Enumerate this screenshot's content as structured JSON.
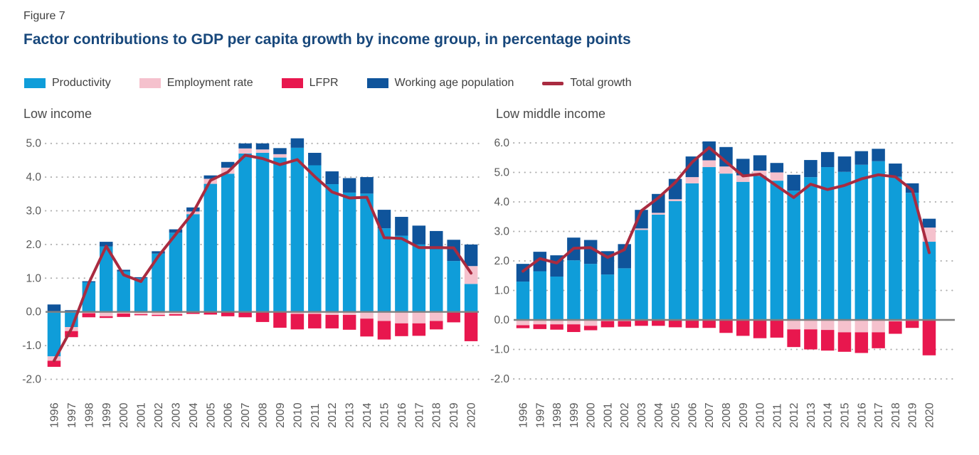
{
  "figure_label": "Figure 7",
  "title": "Factor contributions to GDP per capita growth by income group, in percentage points",
  "colors": {
    "productivity": "#0F9DD9",
    "employment_rate": "#F5C1CD",
    "lfpr": "#E8174E",
    "working_age_population": "#0F549B",
    "total_growth": "#A92B40",
    "title_text": "#17477B",
    "label_text": "#404040",
    "tick_text": "#595959",
    "zero_line": "#808080",
    "grid_dots": "#ADADAD"
  },
  "legend": [
    {
      "label": "Productivity",
      "type": "box",
      "color_key": "productivity"
    },
    {
      "label": "Employment rate",
      "type": "box",
      "color_key": "employment_rate"
    },
    {
      "label": "LFPR",
      "type": "box",
      "color_key": "lfpr"
    },
    {
      "label": "Working age population",
      "type": "box",
      "color_key": "working_age_population"
    },
    {
      "label": "Total growth",
      "type": "line",
      "color_key": "total_growth"
    }
  ],
  "chart_data": [
    {
      "type": "bar",
      "subtype": "stacked-bars-with-line",
      "title": "Low income",
      "ylabel": "",
      "xlabel": "",
      "ylim": [
        -2.0,
        5.0
      ],
      "yticks": [
        5.0,
        4.0,
        3.0,
        2.0,
        1.0,
        0.0,
        -1.0,
        -2.0
      ],
      "grid": true,
      "categories": [
        "1996",
        "1997",
        "1998",
        "1999",
        "2000",
        "2001",
        "2002",
        "2003",
        "2004",
        "2005",
        "2006",
        "2007",
        "2008",
        "2009",
        "2010",
        "2011",
        "2012",
        "2013",
        "2014",
        "2015",
        "2016",
        "2017",
        "2018",
        "2019",
        "2020"
      ],
      "series": [
        {
          "name": "Productivity",
          "key": "productivity",
          "values": [
            -1.32,
            -0.45,
            0.88,
            1.94,
            1.2,
            1.0,
            1.73,
            2.35,
            2.9,
            3.8,
            4.1,
            4.7,
            4.72,
            4.58,
            4.87,
            4.35,
            3.79,
            3.54,
            3.51,
            2.48,
            2.26,
            2.0,
            1.86,
            1.51,
            0.83
          ]
        },
        {
          "name": "Employment rate",
          "key": "employment_rate",
          "values": [
            -0.13,
            -0.12,
            -0.04,
            -0.13,
            -0.05,
            -0.07,
            -0.09,
            -0.07,
            0.08,
            0.15,
            0.18,
            0.15,
            0.1,
            0.1,
            -0.06,
            -0.06,
            -0.09,
            -0.09,
            -0.2,
            -0.27,
            -0.34,
            -0.34,
            -0.27,
            0.0,
            0.53
          ]
        },
        {
          "name": "LFPR",
          "key": "lfpr",
          "values": [
            -0.18,
            -0.18,
            -0.12,
            -0.05,
            -0.1,
            -0.03,
            -0.03,
            -0.04,
            -0.06,
            -0.08,
            -0.13,
            -0.16,
            -0.3,
            -0.47,
            -0.46,
            -0.43,
            -0.4,
            -0.44,
            -0.53,
            -0.55,
            -0.38,
            -0.37,
            -0.25,
            -0.31,
            -0.87
          ]
        },
        {
          "name": "Working age population",
          "key": "working_age_population",
          "values": [
            0.22,
            0.05,
            0.03,
            0.14,
            0.05,
            0.03,
            0.07,
            0.1,
            0.12,
            0.1,
            0.17,
            0.15,
            0.18,
            0.18,
            0.28,
            0.37,
            0.38,
            0.43,
            0.49,
            0.55,
            0.56,
            0.56,
            0.54,
            0.63,
            0.64
          ]
        }
      ],
      "line_series": {
        "name": "Total growth",
        "key": "total_growth",
        "values": [
          -1.45,
          -0.5,
          0.85,
          1.95,
          1.1,
          0.9,
          1.65,
          2.3,
          2.95,
          3.9,
          4.15,
          4.65,
          4.55,
          4.37,
          4.52,
          4.02,
          3.56,
          3.38,
          3.4,
          2.2,
          2.18,
          1.91,
          1.91,
          1.9,
          1.15
        ]
      }
    },
    {
      "type": "bar",
      "subtype": "stacked-bars-with-line",
      "title": "Low middle income",
      "ylabel": "",
      "xlabel": "",
      "ylim": [
        -2.0,
        6.0
      ],
      "yticks": [
        6.0,
        5.0,
        4.0,
        3.0,
        2.0,
        1.0,
        0.0,
        -1.0,
        -2.0
      ],
      "grid": true,
      "categories": [
        "1996",
        "1997",
        "1998",
        "1999",
        "2000",
        "2001",
        "2002",
        "2003",
        "2004",
        "2005",
        "2006",
        "2007",
        "2008",
        "2009",
        "2010",
        "2011",
        "2012",
        "2013",
        "2014",
        "2015",
        "2016",
        "2017",
        "2018",
        "2019",
        "2020"
      ],
      "series": [
        {
          "name": "Productivity",
          "key": "productivity",
          "values": [
            1.3,
            1.65,
            1.47,
            2.02,
            1.9,
            1.54,
            1.75,
            3.05,
            3.57,
            4.03,
            4.63,
            5.18,
            4.96,
            4.68,
            4.88,
            4.72,
            4.38,
            4.84,
            5.18,
            5.02,
            5.26,
            5.38,
            4.85,
            4.31,
            2.65
          ]
        },
        {
          "name": "Employment rate",
          "key": "employment_rate",
          "values": [
            -0.18,
            -0.15,
            -0.15,
            -0.15,
            -0.2,
            -0.04,
            -0.04,
            0.05,
            0.06,
            0.06,
            0.21,
            0.23,
            0.24,
            0.22,
            0.18,
            0.28,
            -0.32,
            -0.32,
            -0.34,
            -0.42,
            -0.42,
            -0.42,
            -0.05,
            -0.03,
            0.48
          ]
        },
        {
          "name": "LFPR",
          "key": "lfpr",
          "values": [
            -0.1,
            -0.16,
            -0.18,
            -0.26,
            -0.15,
            -0.21,
            -0.19,
            -0.2,
            -0.2,
            -0.25,
            -0.27,
            -0.27,
            -0.44,
            -0.54,
            -0.62,
            -0.6,
            -0.6,
            -0.68,
            -0.7,
            -0.66,
            -0.7,
            -0.54,
            -0.42,
            -0.24,
            -1.2
          ]
        },
        {
          "name": "Working age population",
          "key": "working_age_population",
          "values": [
            0.6,
            0.66,
            0.72,
            0.77,
            0.81,
            0.79,
            0.82,
            0.63,
            0.64,
            0.69,
            0.7,
            0.64,
            0.66,
            0.56,
            0.52,
            0.32,
            0.54,
            0.58,
            0.51,
            0.52,
            0.46,
            0.42,
            0.45,
            0.32,
            0.3
          ]
        }
      ],
      "line_series": {
        "name": "Total growth",
        "key": "total_growth",
        "values": [
          1.65,
          2.08,
          1.93,
          2.43,
          2.45,
          2.12,
          2.38,
          3.7,
          4.14,
          4.66,
          5.35,
          5.84,
          5.36,
          4.88,
          4.94,
          4.54,
          4.15,
          4.6,
          4.42,
          4.56,
          4.78,
          4.92,
          4.85,
          4.4,
          2.28
        ]
      }
    }
  ]
}
